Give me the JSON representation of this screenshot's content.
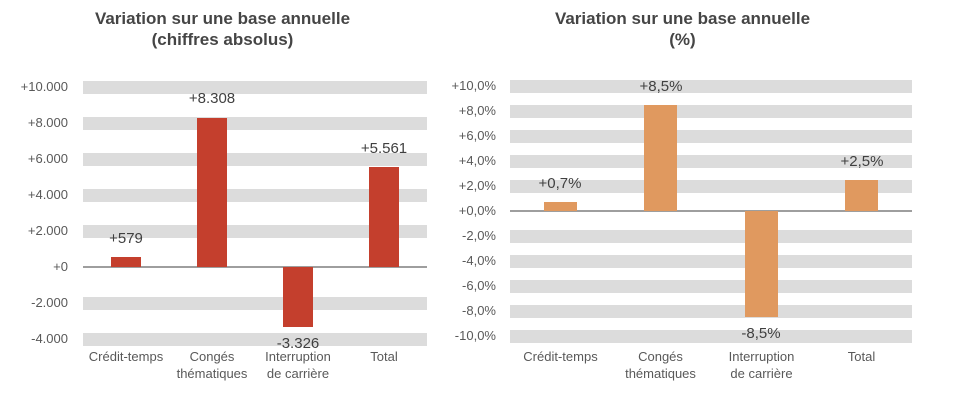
{
  "page": {
    "background": "#ffffff"
  },
  "colors": {
    "title_text": "#454545",
    "axis_text": "#595959",
    "data_label_text": "#404040",
    "gridline_band": "#dcdcdc",
    "zero_axis_line": "#9e9e9e",
    "bar_red": "#c43f2d",
    "bar_orange": "#e0995f"
  },
  "chart_data": [
    {
      "type": "bar",
      "title": "Variation sur une base annuelle",
      "subtitle": "(chiffres absolus)",
      "categories": [
        "Crédit-temps",
        "Congés thématiques",
        "Interruption de carrière",
        "Total"
      ],
      "category_lines": [
        [
          "Crédit-temps"
        ],
        [
          "Congés",
          "thématiques"
        ],
        [
          "Interruption",
          "de carrière"
        ],
        [
          "Total"
        ]
      ],
      "values": [
        579,
        8308,
        -3326,
        5561
      ],
      "data_labels": [
        "+579",
        "+8.308",
        "-3.326",
        "+5.561"
      ],
      "y_ticks": [
        {
          "value": 10000,
          "label": "+10.000"
        },
        {
          "value": 8000,
          "label": "+8.000"
        },
        {
          "value": 6000,
          "label": "+6.000"
        },
        {
          "value": 4000,
          "label": "+4.000"
        },
        {
          "value": 2000,
          "label": "+2.000"
        },
        {
          "value": 0,
          "label": "+0"
        },
        {
          "value": -2000,
          "label": "-2.000"
        },
        {
          "value": -4000,
          "label": "-4.000"
        }
      ],
      "ylim": [
        -4000,
        10000
      ],
      "bar_color": "#c43f2d",
      "band_color": "#dcdcdc",
      "axis_color": "#9e9e9e",
      "grid": "thick-horizontal-bands",
      "legend": "none"
    },
    {
      "type": "bar",
      "title": "Variation sur une base annuelle",
      "subtitle": "(%)",
      "categories": [
        "Crédit-temps",
        "Congés thématiques",
        "Interruption de carrière",
        "Total"
      ],
      "category_lines": [
        [
          "Crédit-temps"
        ],
        [
          "Congés",
          "thématiques"
        ],
        [
          "Interruption",
          "de carrière"
        ],
        [
          "Total"
        ]
      ],
      "values": [
        0.7,
        8.5,
        -8.5,
        2.5
      ],
      "data_labels": [
        "+0,7%",
        "+8,5%",
        "-8,5%",
        "+2,5%"
      ],
      "y_ticks": [
        {
          "value": 10,
          "label": "+10,0%"
        },
        {
          "value": 8,
          "label": "+8,0%"
        },
        {
          "value": 6,
          "label": "+6,0%"
        },
        {
          "value": 4,
          "label": "+4,0%"
        },
        {
          "value": 2,
          "label": "+2,0%"
        },
        {
          "value": 0,
          "label": "+0,0%"
        },
        {
          "value": -2,
          "label": "-2,0%"
        },
        {
          "value": -4,
          "label": "-4,0%"
        },
        {
          "value": -6,
          "label": "-6,0%"
        },
        {
          "value": -8,
          "label": "-8,0%"
        },
        {
          "value": -10,
          "label": "-10,0%"
        }
      ],
      "ylim": [
        -10,
        10
      ],
      "bar_color": "#e0995f",
      "band_color": "#dcdcdc",
      "axis_color": "#9e9e9e",
      "grid": "thick-horizontal-bands",
      "legend": "none"
    }
  ]
}
